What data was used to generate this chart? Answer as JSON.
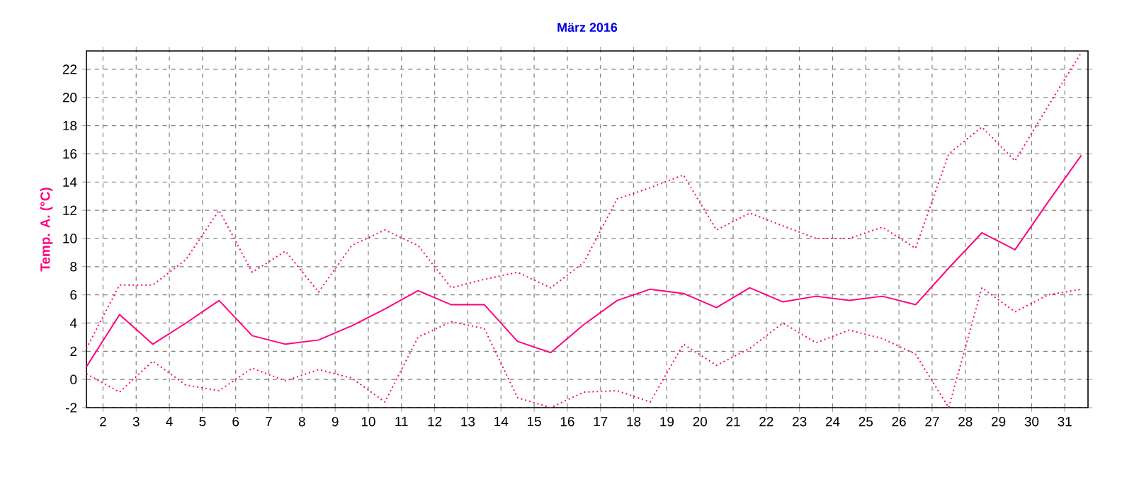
{
  "chart_data": {
    "type": "line",
    "title": "März 2016",
    "ylabel": "Temp. A. (°C)",
    "x": [
      1.5,
      2.5,
      3.5,
      4.5,
      5.5,
      6.5,
      7.5,
      8.5,
      9.5,
      10.5,
      11.5,
      12.5,
      13.5,
      14.5,
      15.5,
      16.5,
      17.5,
      18.5,
      19.5,
      20.5,
      21.5,
      22.5,
      23.5,
      24.5,
      25.5,
      26.5,
      27.5,
      28.5,
      29.5,
      30.5,
      31.5
    ],
    "xlim": [
      1.5,
      31.7
    ],
    "xticks": [
      2,
      3,
      4,
      5,
      6,
      7,
      8,
      9,
      10,
      11,
      12,
      13,
      14,
      15,
      16,
      17,
      18,
      19,
      20,
      21,
      22,
      23,
      24,
      25,
      26,
      27,
      28,
      29,
      30,
      31
    ],
    "ylim": [
      -2,
      23.3
    ],
    "yticks": [
      -2,
      0,
      2,
      4,
      6,
      8,
      10,
      12,
      14,
      16,
      18,
      20,
      22
    ],
    "grid": true,
    "marker": "none",
    "series": [
      {
        "color": "#ff0080",
        "line_style": "dotted",
        "values": [
          2.2,
          6.7,
          6.7,
          8.5,
          12.0,
          7.6,
          9.1,
          6.2,
          9.5,
          10.6,
          9.5,
          6.5,
          7.1,
          7.6,
          6.5,
          8.3,
          12.8,
          13.6,
          14.5,
          10.6,
          11.8,
          10.9,
          10.0,
          10.0,
          10.8,
          9.3,
          16.0,
          17.9,
          15.5,
          19.4,
          23.2
        ]
      },
      {
        "color": "#ff0080",
        "line_style": "solid",
        "values": [
          0.9,
          4.6,
          2.5,
          4.0,
          5.6,
          3.1,
          2.5,
          2.8,
          3.8,
          5.0,
          6.3,
          5.3,
          5.3,
          2.7,
          1.9,
          3.9,
          5.6,
          6.4,
          6.1,
          5.1,
          6.5,
          5.5,
          5.9,
          5.6,
          5.9,
          5.3,
          7.9,
          10.4,
          9.2,
          12.6,
          15.9
        ]
      },
      {
        "color": "#ff0080",
        "line_style": "dotted",
        "values": [
          0.4,
          -0.9,
          1.3,
          -0.4,
          -0.8,
          0.8,
          -0.1,
          0.7,
          0.1,
          -1.6,
          3.0,
          4.1,
          3.6,
          -1.3,
          -2.0,
          -0.9,
          -0.8,
          -1.6,
          2.5,
          1.0,
          2.2,
          4.0,
          2.6,
          3.5,
          2.9,
          1.8,
          -2.0,
          6.5,
          4.8,
          6.0,
          6.4
        ]
      }
    ]
  }
}
